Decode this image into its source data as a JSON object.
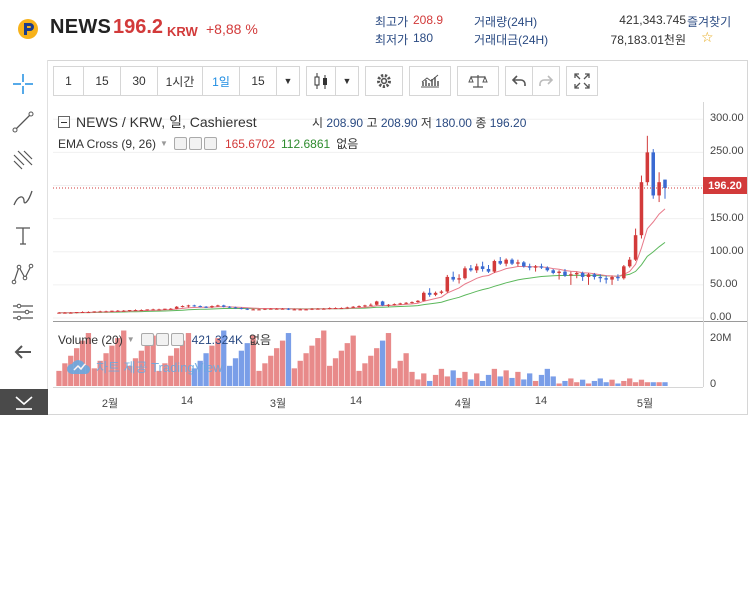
{
  "header": {
    "coin_symbol": "NEWS",
    "price": "196.2",
    "unit": "KRW",
    "change": "+8,88 %",
    "high_label": "최고가",
    "high_value": "208.9",
    "low_label": "최저가",
    "low_value": "180",
    "volume_label": "거래량(24H)",
    "volume_value": "421,343.745",
    "amount_label": "거래대금(24H)",
    "amount_value": "78,183.01천원",
    "favorite_label": "즐겨찾기",
    "favorite_icon": "star-icon"
  },
  "toolbar": {
    "intervals": [
      "1",
      "15",
      "30",
      "1시간",
      "1일",
      "15"
    ],
    "active_interval": "1일",
    "icons": [
      "candles-icon",
      "chevron-down-icon",
      "gear-icon",
      "indicators-icon",
      "compare-icon",
      "undo-icon",
      "redo-icon",
      "fullscreen-icon"
    ]
  },
  "left_tools": [
    "crosshair-icon",
    "trendline-icon",
    "fib-icon",
    "brush-icon",
    "text-icon",
    "pattern-icon",
    "measure-icon",
    "back-arrow-icon",
    "collapse-icon"
  ],
  "legend": {
    "title": "NEWS / KRW, 일, Cashierest",
    "o_label": "시",
    "o_value": "208.90",
    "h_label": "고",
    "h_value": "208.90",
    "l_label": "저",
    "l_value": "180.00",
    "c_label": "종",
    "c_value": "196.20",
    "ema_label": "EMA Cross (9, 26)",
    "ema_fast": "165.6702",
    "ema_slow": "112.6861",
    "ema_extra": "없음",
    "vol_label": "Volume (20)",
    "vol_value": "421.324K",
    "vol_extra": "없음",
    "watermark": "차트 제공 TradingView"
  },
  "colors": {
    "up": "#d23a3a",
    "down": "#3a6ad2",
    "ema_fast": "#e87a8a",
    "ema_slow": "#5cb85c",
    "vol_up": "#e88a8a",
    "vol_down": "#7a9ee8"
  },
  "price_axis": [
    "300.00",
    "250.00",
    "200.00",
    "150.00",
    "100.00",
    "50.00",
    "0.00"
  ],
  "current_price_tag": "196.20",
  "volume_axis": [
    "20M",
    "0"
  ],
  "time_axis": [
    "2월",
    "14",
    "3월",
    "14",
    "4월",
    "14",
    "5월"
  ],
  "chart_data": {
    "type": "candlestick",
    "ylim": [
      0,
      320
    ],
    "candles": [
      [
        8,
        9,
        7,
        8
      ],
      [
        8,
        9,
        7,
        8
      ],
      [
        8,
        9,
        7,
        8
      ],
      [
        8,
        9,
        7,
        9
      ],
      [
        9,
        10,
        8,
        9
      ],
      [
        9,
        10,
        8,
        9
      ],
      [
        9,
        10,
        8,
        10
      ],
      [
        10,
        11,
        9,
        10
      ],
      [
        10,
        11,
        9,
        10
      ],
      [
        10,
        11,
        9,
        11
      ],
      [
        11,
        12,
        10,
        11
      ],
      [
        11,
        12,
        10,
        11
      ],
      [
        11,
        12,
        10,
        12
      ],
      [
        12,
        13,
        11,
        12
      ],
      [
        12,
        13,
        11,
        12
      ],
      [
        12,
        13,
        11,
        13
      ],
      [
        13,
        14,
        12,
        13
      ],
      [
        13,
        14,
        12,
        13
      ],
      [
        13,
        14,
        12,
        14
      ],
      [
        14,
        15,
        13,
        14
      ],
      [
        14,
        18,
        13,
        17
      ],
      [
        17,
        19,
        16,
        18
      ],
      [
        18,
        20,
        16,
        19
      ],
      [
        19,
        20,
        17,
        18
      ],
      [
        18,
        19,
        16,
        17
      ],
      [
        17,
        18,
        15,
        16
      ],
      [
        16,
        19,
        15,
        18
      ],
      [
        18,
        20,
        17,
        19
      ],
      [
        19,
        20,
        16,
        17
      ],
      [
        17,
        18,
        15,
        16
      ],
      [
        16,
        17,
        14,
        15
      ],
      [
        15,
        16,
        13,
        14
      ],
      [
        14,
        15,
        12,
        13
      ],
      [
        13,
        14,
        12,
        13
      ],
      [
        13,
        14,
        12,
        13
      ],
      [
        13,
        14,
        12,
        14
      ],
      [
        14,
        15,
        13,
        14
      ],
      [
        14,
        15,
        13,
        14
      ],
      [
        14,
        15,
        13,
        14
      ],
      [
        14,
        15,
        12,
        13
      ],
      [
        13,
        14,
        12,
        13
      ],
      [
        13,
        14,
        12,
        13
      ],
      [
        13,
        14,
        12,
        13
      ],
      [
        13,
        15,
        12,
        14
      ],
      [
        14,
        15,
        13,
        14
      ],
      [
        14,
        15,
        13,
        14
      ],
      [
        14,
        16,
        13,
        15
      ],
      [
        15,
        16,
        14,
        15
      ],
      [
        15,
        16,
        14,
        15
      ],
      [
        15,
        17,
        14,
        16
      ],
      [
        16,
        18,
        15,
        17
      ],
      [
        17,
        19,
        16,
        18
      ],
      [
        18,
        20,
        16,
        19
      ],
      [
        19,
        22,
        18,
        20
      ],
      [
        20,
        26,
        19,
        25
      ],
      [
        25,
        26,
        18,
        19
      ],
      [
        19,
        21,
        17,
        20
      ],
      [
        20,
        22,
        19,
        21
      ],
      [
        21,
        23,
        20,
        22
      ],
      [
        22,
        24,
        21,
        23
      ],
      [
        23,
        25,
        22,
        24
      ],
      [
        24,
        27,
        23,
        26
      ],
      [
        26,
        40,
        25,
        38
      ],
      [
        38,
        45,
        32,
        35
      ],
      [
        35,
        40,
        33,
        38
      ],
      [
        38,
        42,
        36,
        40
      ],
      [
        40,
        65,
        38,
        62
      ],
      [
        62,
        70,
        55,
        58
      ],
      [
        58,
        66,
        52,
        60
      ],
      [
        60,
        78,
        58,
        75
      ],
      [
        75,
        80,
        70,
        72
      ],
      [
        72,
        82,
        68,
        78
      ],
      [
        78,
        85,
        70,
        74
      ],
      [
        74,
        80,
        68,
        70
      ],
      [
        70,
        88,
        68,
        86
      ],
      [
        86,
        92,
        80,
        82
      ],
      [
        82,
        90,
        78,
        88
      ],
      [
        88,
        90,
        80,
        82
      ],
      [
        82,
        88,
        78,
        84
      ],
      [
        84,
        86,
        76,
        78
      ],
      [
        78,
        82,
        72,
        76
      ],
      [
        76,
        80,
        70,
        78
      ],
      [
        78,
        82,
        74,
        76
      ],
      [
        76,
        78,
        70,
        72
      ],
      [
        72,
        74,
        66,
        68
      ],
      [
        68,
        72,
        58,
        70
      ],
      [
        70,
        74,
        62,
        64
      ],
      [
        64,
        70,
        50,
        66
      ],
      [
        66,
        70,
        60,
        68
      ],
      [
        68,
        70,
        56,
        62
      ],
      [
        62,
        68,
        50,
        66
      ],
      [
        66,
        68,
        58,
        62
      ],
      [
        62,
        66,
        54,
        60
      ],
      [
        60,
        64,
        52,
        58
      ],
      [
        58,
        64,
        50,
        62
      ],
      [
        62,
        66,
        56,
        60
      ],
      [
        60,
        80,
        58,
        78
      ],
      [
        78,
        92,
        76,
        88
      ],
      [
        88,
        135,
        86,
        125
      ],
      [
        125,
        215,
        120,
        205
      ],
      [
        205,
        275,
        200,
        250
      ],
      [
        250,
        255,
        180,
        185
      ],
      [
        185,
        220,
        175,
        205
      ],
      [
        208.9,
        208.9,
        180,
        196.2
      ]
    ],
    "ema_fast_last": 165.67,
    "ema_slow_last": 112.69,
    "volume_max": 23
  }
}
